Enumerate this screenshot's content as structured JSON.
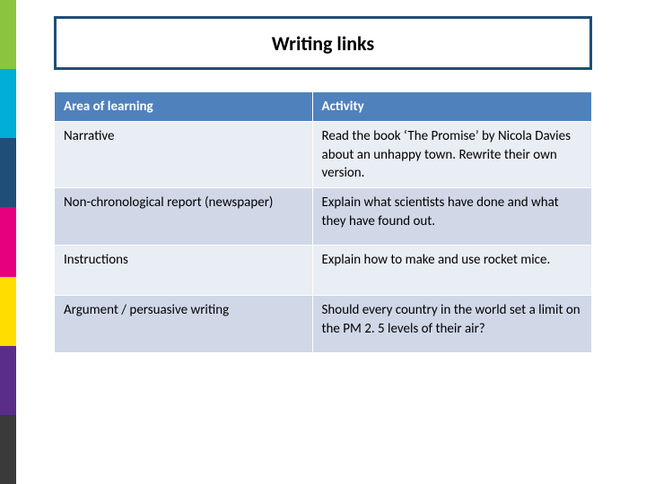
{
  "title": {
    "text": "Writing links",
    "border_color": "#1f4e79",
    "bg_color": "#ffffff",
    "text_color": "#000000",
    "fontsize": 22
  },
  "sidebar_colors": [
    "#8bc53f",
    "#00aed6",
    "#1f4e79",
    "#e6007e",
    "#ffdd00",
    "#5b2d8a",
    "#3a3a3a"
  ],
  "table": {
    "header_bg": "#4f81bd",
    "header_text_color": "#ffffff",
    "row_bg_odd": "#e9edf4",
    "row_bg_even": "#d0d8e8",
    "columns": [
      "Area of learning",
      "Activity"
    ],
    "rows": [
      {
        "area": "Narrative",
        "activity": "Read the book ‘The Promise’ by Nicola Davies about an unhappy town. Rewrite their own version."
      },
      {
        "area": "Non-chronological report (newspaper)",
        "activity": "Explain what scientists have done and what they have found out."
      },
      {
        "area": "Instructions",
        "activity": "Explain how to make and use rocket mice."
      },
      {
        "area": "Argument / persuasive writing",
        "activity": "Should every country in the world set a limit on the PM 2. 5 levels of their air?"
      }
    ]
  }
}
